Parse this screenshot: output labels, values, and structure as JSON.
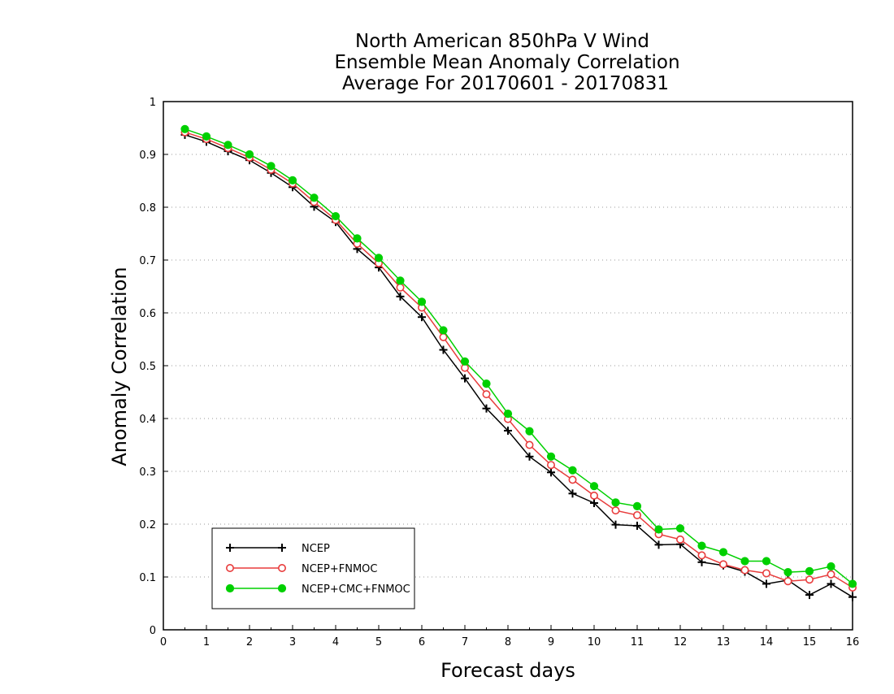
{
  "chart_data": {
    "type": "line",
    "title_lines": [
      "North American 850hPa V Wind",
      "Ensemble Mean Anomaly Correlation",
      "Average For 20170601 - 20170831"
    ],
    "xlabel": "Forecast days",
    "ylabel": "Anomaly Correlation",
    "xlim": [
      0,
      16
    ],
    "ylim": [
      0,
      1
    ],
    "x_ticks": [
      "0",
      "1",
      "2",
      "3",
      "4",
      "5",
      "6",
      "7",
      "8",
      "9",
      "10",
      "11",
      "12",
      "13",
      "14",
      "15",
      "16"
    ],
    "y_ticks": [
      "0",
      "0.1",
      "0.2",
      "0.3",
      "0.4",
      "0.5",
      "0.6",
      "0.7",
      "0.8",
      "0.9",
      "1"
    ],
    "grid": "horizontal dotted",
    "legend_position": "bottom-left",
    "x": [
      0.5,
      1,
      1.5,
      2,
      2.5,
      3,
      3.5,
      4,
      4.5,
      5,
      5.5,
      6,
      6.5,
      7,
      7.5,
      8,
      8.5,
      9,
      9.5,
      10,
      10.5,
      11,
      11.5,
      12,
      12.5,
      13,
      13.5,
      14,
      14.5,
      15,
      15.5,
      16
    ],
    "series": [
      {
        "name": "NCEP",
        "color": "#000000",
        "marker": "plus",
        "values": [
          0.937,
          0.924,
          0.906,
          0.889,
          0.865,
          0.838,
          0.801,
          0.772,
          0.721,
          0.686,
          0.631,
          0.592,
          0.53,
          0.476,
          0.419,
          0.377,
          0.328,
          0.298,
          0.258,
          0.24,
          0.199,
          0.197,
          0.161,
          0.162,
          0.128,
          0.122,
          0.11,
          0.087,
          0.094,
          0.066,
          0.087,
          0.062
        ]
      },
      {
        "name": "NCEP+FNMOC",
        "color": "#e83c3c",
        "marker": "open-circle",
        "values": [
          0.942,
          0.929,
          0.912,
          0.894,
          0.871,
          0.845,
          0.81,
          0.776,
          0.731,
          0.694,
          0.648,
          0.61,
          0.554,
          0.496,
          0.446,
          0.399,
          0.35,
          0.312,
          0.284,
          0.254,
          0.226,
          0.217,
          0.181,
          0.171,
          0.141,
          0.124,
          0.113,
          0.107,
          0.092,
          0.095,
          0.105,
          0.08
        ]
      },
      {
        "name": "NCEP+CMC+FNMOC",
        "color": "#00d000",
        "marker": "filled-circle",
        "values": [
          0.948,
          0.934,
          0.918,
          0.9,
          0.878,
          0.851,
          0.818,
          0.783,
          0.741,
          0.704,
          0.661,
          0.621,
          0.567,
          0.508,
          0.466,
          0.409,
          0.376,
          0.328,
          0.302,
          0.272,
          0.241,
          0.234,
          0.19,
          0.192,
          0.159,
          0.147,
          0.13,
          0.13,
          0.109,
          0.111,
          0.12,
          0.087
        ]
      }
    ]
  }
}
